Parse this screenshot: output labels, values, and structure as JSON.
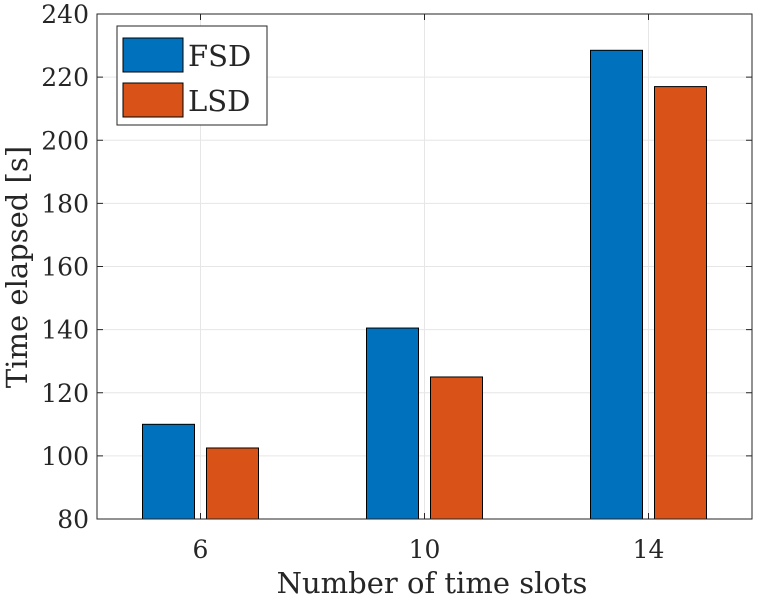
{
  "chart_data": {
    "type": "bar",
    "title": "",
    "xlabel": "Number of time slots",
    "ylabel": "Time elapsed [s]",
    "categories": [
      "6",
      "10",
      "14"
    ],
    "ylim": [
      80,
      240
    ],
    "yticks": [
      "80",
      "100",
      "120",
      "140",
      "160",
      "180",
      "200",
      "220",
      "240"
    ],
    "grid": true,
    "legend_position": "top-left",
    "series": [
      {
        "name": "FSD",
        "color": "#0072BD",
        "values": [
          110,
          140.5,
          228.5
        ]
      },
      {
        "name": "LSD",
        "color": "#D95319",
        "values": [
          102.5,
          125,
          217
        ]
      }
    ]
  }
}
